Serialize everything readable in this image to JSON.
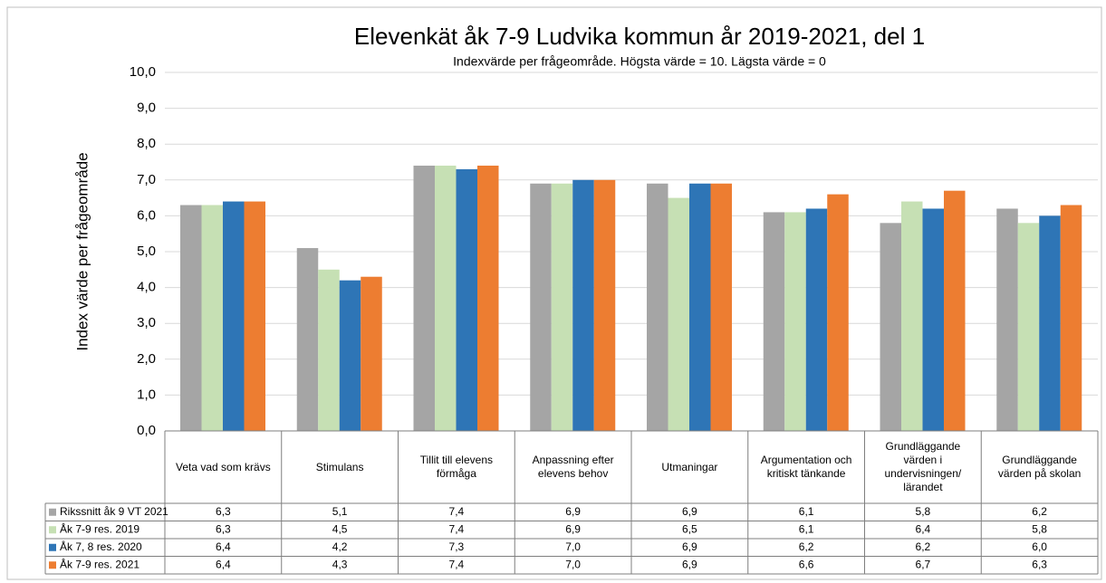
{
  "chart_data": {
    "type": "bar",
    "title": "Elevenkät åk 7-9 Ludvika kommun år 2019-2021, del 1",
    "subtitle": "Indexvärde per frågeområde. Högsta värde = 10. Lägsta värde = 0",
    "y_label": "Index värde per frågeområde",
    "categories": [
      "Veta vad som krävs",
      "Stimulans",
      "Tillit till elevens förmåga",
      "Anpassning efter elevens behov",
      "Utmaningar",
      "Argumentation och kritiskt tänkande",
      "Grundläggande värden i undervisningen/ lärandet",
      "Grundläggande värden på skolan"
    ],
    "series": [
      {
        "name": "Rikssnitt åk 9 VT 2021",
        "color": "#a5a5a5",
        "values": [
          6.3,
          5.1,
          7.4,
          6.9,
          6.9,
          6.1,
          5.8,
          6.2
        ],
        "value_labels": [
          "6,3",
          "5,1",
          "7,4",
          "6,9",
          "6,9",
          "6,1",
          "5,8",
          "6,2"
        ]
      },
      {
        "name": "Åk 7-9 res. 2019",
        "color": "#c6e0b4",
        "values": [
          6.3,
          4.5,
          7.4,
          6.9,
          6.5,
          6.1,
          6.4,
          5.8
        ],
        "value_labels": [
          "6,3",
          "4,5",
          "7,4",
          "6,9",
          "6,5",
          "6,1",
          "6,4",
          "5,8"
        ]
      },
      {
        "name": "Åk 7, 8 res. 2020",
        "color": "#2e75b6",
        "values": [
          6.4,
          4.2,
          7.3,
          7.0,
          6.9,
          6.2,
          6.2,
          6.0
        ],
        "value_labels": [
          "6,4",
          "4,2",
          "7,3",
          "7,0",
          "6,9",
          "6,2",
          "6,2",
          "6,0"
        ]
      },
      {
        "name": "Åk 7-9 res. 2021",
        "color": "#ed7d31",
        "values": [
          6.4,
          4.3,
          7.4,
          7.0,
          6.9,
          6.6,
          6.7,
          6.3
        ],
        "value_labels": [
          "6,4",
          "4,3",
          "7,4",
          "7,0",
          "6,9",
          "6,6",
          "6,7",
          "6,3"
        ]
      }
    ],
    "ylim": [
      0,
      10
    ],
    "yticks": [
      {
        "value": 0,
        "label": "0,0"
      },
      {
        "value": 1,
        "label": "1,0"
      },
      {
        "value": 2,
        "label": "2,0"
      },
      {
        "value": 3,
        "label": "3,0"
      },
      {
        "value": 4,
        "label": "4,0"
      },
      {
        "value": 5,
        "label": "5,0"
      },
      {
        "value": 6,
        "label": "6,0"
      },
      {
        "value": 7,
        "label": "7,0"
      },
      {
        "value": 8,
        "label": "8,0"
      },
      {
        "value": 9,
        "label": "9,0"
      },
      {
        "value": 10,
        "label": "10,0"
      }
    ],
    "grid": true
  }
}
